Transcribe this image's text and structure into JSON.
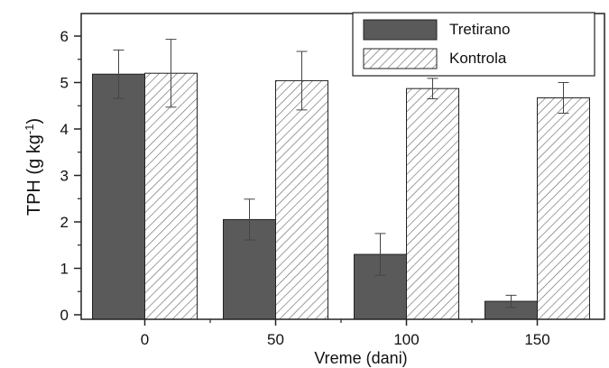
{
  "chart_data": {
    "type": "bar",
    "title": "",
    "xlabel": "Vreme (dani)",
    "ylabel": {
      "base": "TPH (g kg",
      "superscript": "-1",
      "close": ")"
    },
    "categories": [
      "0",
      "50",
      "100",
      "150"
    ],
    "ylim": [
      0,
      6.5
    ],
    "yticks": [
      "0",
      "1",
      "2",
      "3",
      "4",
      "5",
      "6"
    ],
    "grid": false,
    "legend_position": "top-right",
    "series": [
      {
        "name": "Tretirano",
        "pattern": "solid",
        "color": "#5a5a5a",
        "values": [
          5.18,
          2.05,
          1.3,
          0.29
        ],
        "errors": [
          0.52,
          0.44,
          0.45,
          0.13
        ]
      },
      {
        "name": "Kontrola",
        "pattern": "hatched",
        "color": "#ffffff",
        "values": [
          5.2,
          5.04,
          4.87,
          4.67
        ],
        "errors": [
          0.73,
          0.63,
          0.22,
          0.33
        ]
      }
    ]
  }
}
